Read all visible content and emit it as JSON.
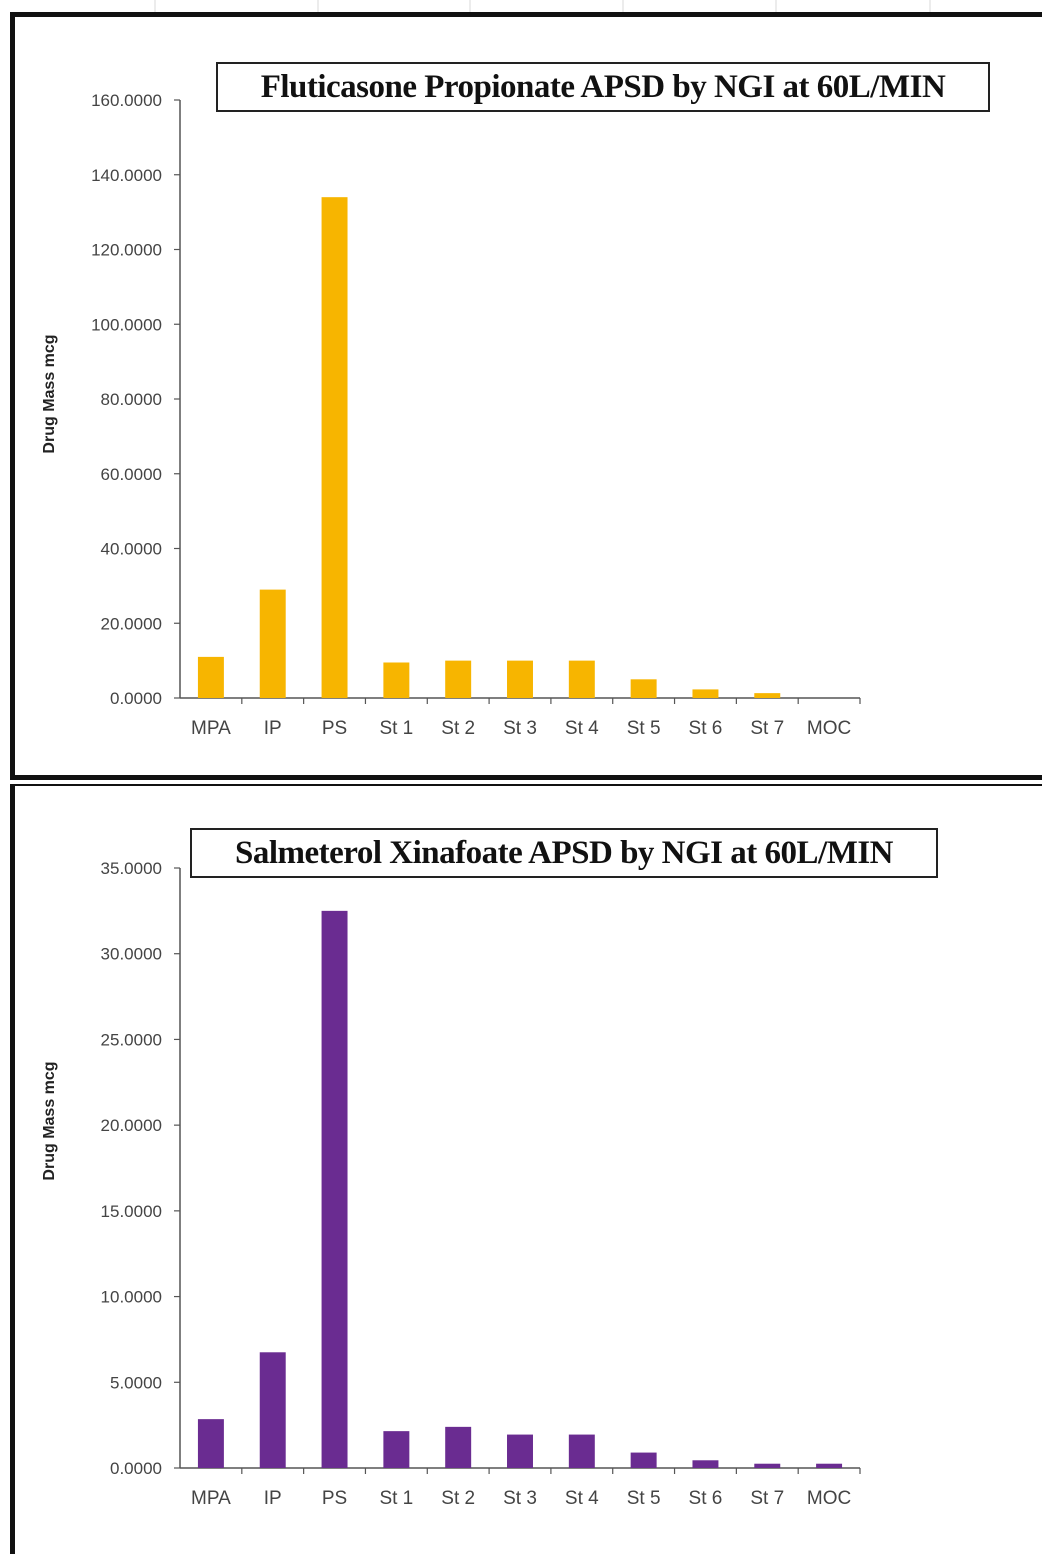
{
  "chart_data": [
    {
      "type": "bar",
      "title": "Fluticasone Propionate APSD by NGI at 60L/MIN",
      "xlabel": "",
      "ylabel": "Drug Mass mcg",
      "categories": [
        "MPA",
        "IP",
        "PS",
        "St 1",
        "St 2",
        "St 3",
        "St 4",
        "St 5",
        "St 6",
        "St 7",
        "MOC"
      ],
      "values": [
        11.0,
        29.0,
        134.0,
        9.5,
        10.0,
        10.0,
        10.0,
        5.0,
        2.3,
        1.3,
        0.0
      ],
      "ylim": [
        0,
        160
      ],
      "yticks": [
        "0.0000",
        "20.0000",
        "40.0000",
        "60.0000",
        "80.0000",
        "100.0000",
        "120.0000",
        "140.0000",
        "160.0000"
      ],
      "bar_color": "#f7b500",
      "grid": false,
      "legend": "none"
    },
    {
      "type": "bar",
      "title": "Salmeterol Xinafoate APSD by NGI at 60L/MIN",
      "xlabel": "",
      "ylabel": "Drug Mass mcg",
      "categories": [
        "MPA",
        "IP",
        "PS",
        "St 1",
        "St 2",
        "St 3",
        "St 4",
        "St 5",
        "St 6",
        "St 7",
        "MOC"
      ],
      "values": [
        2.85,
        6.75,
        32.5,
        2.15,
        2.4,
        1.95,
        1.95,
        0.9,
        0.45,
        0.25,
        0.25
      ],
      "ylim": [
        0,
        35
      ],
      "yticks": [
        "0.0000",
        "5.0000",
        "10.0000",
        "15.0000",
        "20.0000",
        "25.0000",
        "30.0000",
        "35.0000"
      ],
      "bar_color": "#6a2c91",
      "grid": false,
      "legend": "none"
    }
  ]
}
